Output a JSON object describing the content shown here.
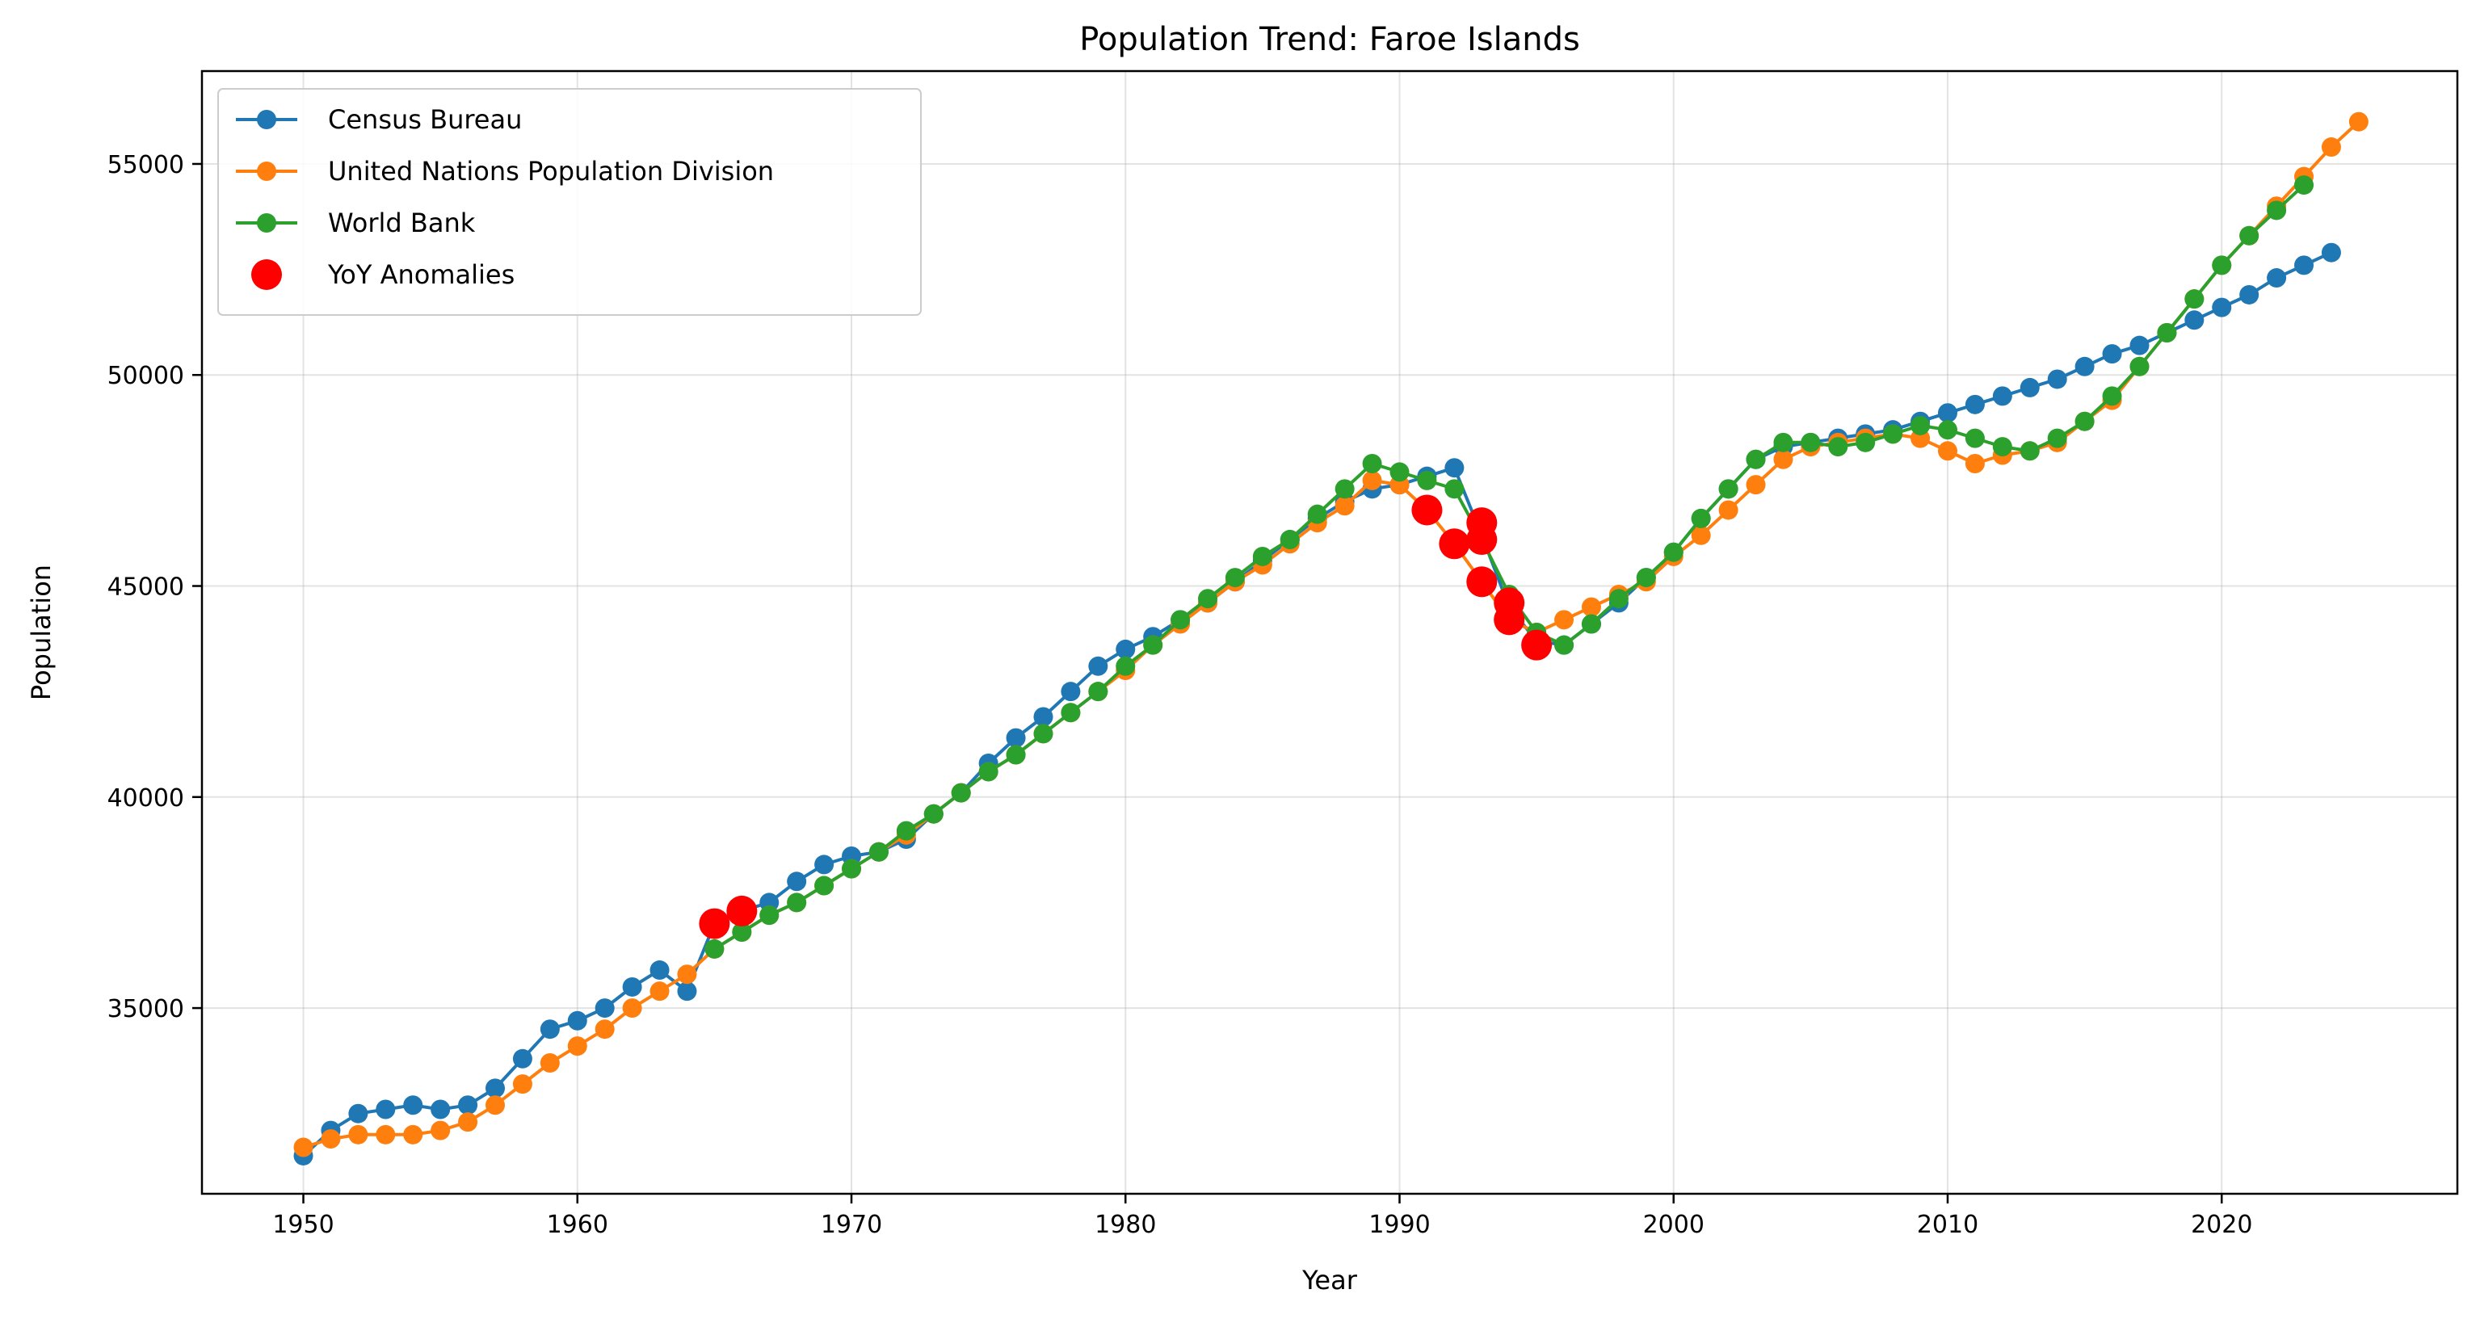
{
  "chart_data": {
    "type": "line",
    "title": "Population Trend: Faroe Islands",
    "xlabel": "Year",
    "ylabel": "Population",
    "xlim": [
      1946.3,
      2028.6
    ],
    "ylim": [
      30600,
      57200
    ],
    "xticks": [
      1950,
      1960,
      1970,
      1980,
      1990,
      2000,
      2010,
      2020
    ],
    "yticks": [
      35000,
      40000,
      45000,
      50000,
      55000
    ],
    "grid": true,
    "legend_position": "top-left",
    "series": [
      {
        "name": "Census Bureau",
        "color": "#1f77b4",
        "x": [
          1950,
          1951,
          1952,
          1953,
          1954,
          1955,
          1956,
          1957,
          1958,
          1959,
          1960,
          1961,
          1962,
          1963,
          1964,
          1965,
          1966,
          1967,
          1968,
          1969,
          1970,
          1971,
          1972,
          1973,
          1974,
          1975,
          1976,
          1977,
          1978,
          1979,
          1980,
          1981,
          1982,
          1983,
          1984,
          1985,
          1986,
          1987,
          1988,
          1989,
          1990,
          1991,
          1992,
          1993,
          1994,
          1995,
          1996,
          1997,
          1998,
          1999,
          2000,
          2001,
          2002,
          2003,
          2004,
          2005,
          2006,
          2007,
          2008,
          2009,
          2010,
          2011,
          2012,
          2013,
          2014,
          2015,
          2016,
          2017,
          2018,
          2019,
          2020,
          2021,
          2022,
          2023,
          2024
        ],
        "values": [
          31500,
          32100,
          32500,
          32600,
          32700,
          32600,
          32700,
          33100,
          33800,
          34500,
          34700,
          35000,
          35500,
          35900,
          35400,
          37000,
          37300,
          37500,
          38000,
          38400,
          38600,
          38700,
          39000,
          39600,
          40100,
          40800,
          41400,
          41900,
          42500,
          43100,
          43500,
          43800,
          44200,
          44600,
          45100,
          45600,
          46100,
          46600,
          47000,
          47300,
          47400,
          47600,
          47800,
          46200,
          44500,
          43700,
          43600,
          44100,
          44600,
          45200,
          45800,
          46600,
          47300,
          48000,
          48300,
          48400,
          48500,
          48600,
          48700,
          48900,
          49100,
          49300,
          49500,
          49700,
          49900,
          50200,
          50500,
          50700,
          51000,
          51300,
          51600,
          51900,
          52300,
          52600,
          52900
        ]
      },
      {
        "name": "United Nations Population Division",
        "color": "#ff7f0e",
        "x": [
          1950,
          1951,
          1952,
          1953,
          1954,
          1955,
          1956,
          1957,
          1958,
          1959,
          1960,
          1961,
          1962,
          1963,
          1964,
          1965,
          1966,
          1967,
          1968,
          1969,
          1970,
          1971,
          1972,
          1973,
          1974,
          1975,
          1976,
          1977,
          1978,
          1979,
          1980,
          1981,
          1982,
          1983,
          1984,
          1985,
          1986,
          1987,
          1988,
          1989,
          1990,
          1991,
          1992,
          1993,
          1994,
          1995,
          1996,
          1997,
          1998,
          1999,
          2000,
          2001,
          2002,
          2003,
          2004,
          2005,
          2006,
          2007,
          2008,
          2009,
          2010,
          2011,
          2012,
          2013,
          2014,
          2015,
          2016,
          2017,
          2018,
          2019,
          2020,
          2021,
          2022,
          2023,
          2024,
          2025
        ],
        "values": [
          31700,
          31900,
          32000,
          32000,
          32000,
          32100,
          32300,
          32700,
          33200,
          33700,
          34100,
          34500,
          35000,
          35400,
          35800,
          36400,
          36800,
          37200,
          37500,
          37900,
          38300,
          38700,
          39100,
          39600,
          40100,
          40600,
          41000,
          41500,
          42000,
          42500,
          43000,
          43600,
          44100,
          44600,
          45100,
          45500,
          46000,
          46500,
          46900,
          47500,
          47400,
          46800,
          46000,
          45100,
          44200,
          43900,
          44200,
          44500,
          44800,
          45100,
          45700,
          46200,
          46800,
          47400,
          48000,
          48300,
          48400,
          48500,
          48600,
          48500,
          48200,
          47900,
          48100,
          48200,
          48400,
          48900,
          49400,
          50200,
          51000,
          51800,
          52600,
          53300,
          54000,
          54700,
          55400,
          56000
        ]
      },
      {
        "name": "World Bank",
        "color": "#2ca02c",
        "x": [
          1965,
          1966,
          1967,
          1968,
          1969,
          1970,
          1971,
          1972,
          1973,
          1974,
          1975,
          1976,
          1977,
          1978,
          1979,
          1980,
          1981,
          1982,
          1983,
          1984,
          1985,
          1986,
          1987,
          1988,
          1989,
          1990,
          1991,
          1992,
          1993,
          1994,
          1995,
          1996,
          1997,
          1998,
          1999,
          2000,
          2001,
          2002,
          2003,
          2004,
          2005,
          2006,
          2007,
          2008,
          2009,
          2010,
          2011,
          2012,
          2013,
          2014,
          2015,
          2016,
          2017,
          2018,
          2019,
          2020,
          2021,
          2022,
          2023
        ],
        "values": [
          36400,
          36800,
          37200,
          37500,
          37900,
          38300,
          38700,
          39200,
          39600,
          40100,
          40600,
          41000,
          41500,
          42000,
          42500,
          43100,
          43600,
          44200,
          44700,
          45200,
          45700,
          46100,
          46700,
          47300,
          47900,
          47700,
          47500,
          47300,
          46100,
          44800,
          43900,
          43600,
          44100,
          44700,
          45200,
          45800,
          46600,
          47300,
          48000,
          48400,
          48400,
          48300,
          48400,
          48600,
          48800,
          48700,
          48500,
          48300,
          48200,
          48500,
          48900,
          49500,
          50200,
          51000,
          51800,
          52600,
          53300,
          53900,
          54500
        ]
      },
      {
        "name": "YoY Anomalies",
        "color": "#ff0000",
        "type": "scatter",
        "x": [
          1965,
          1966,
          1991,
          1992,
          1993,
          1993,
          1993,
          1994,
          1994,
          1995
        ],
        "values": [
          37000,
          37300,
          46800,
          46000,
          46500,
          46100,
          45100,
          44600,
          44200,
          43600
        ]
      }
    ]
  }
}
